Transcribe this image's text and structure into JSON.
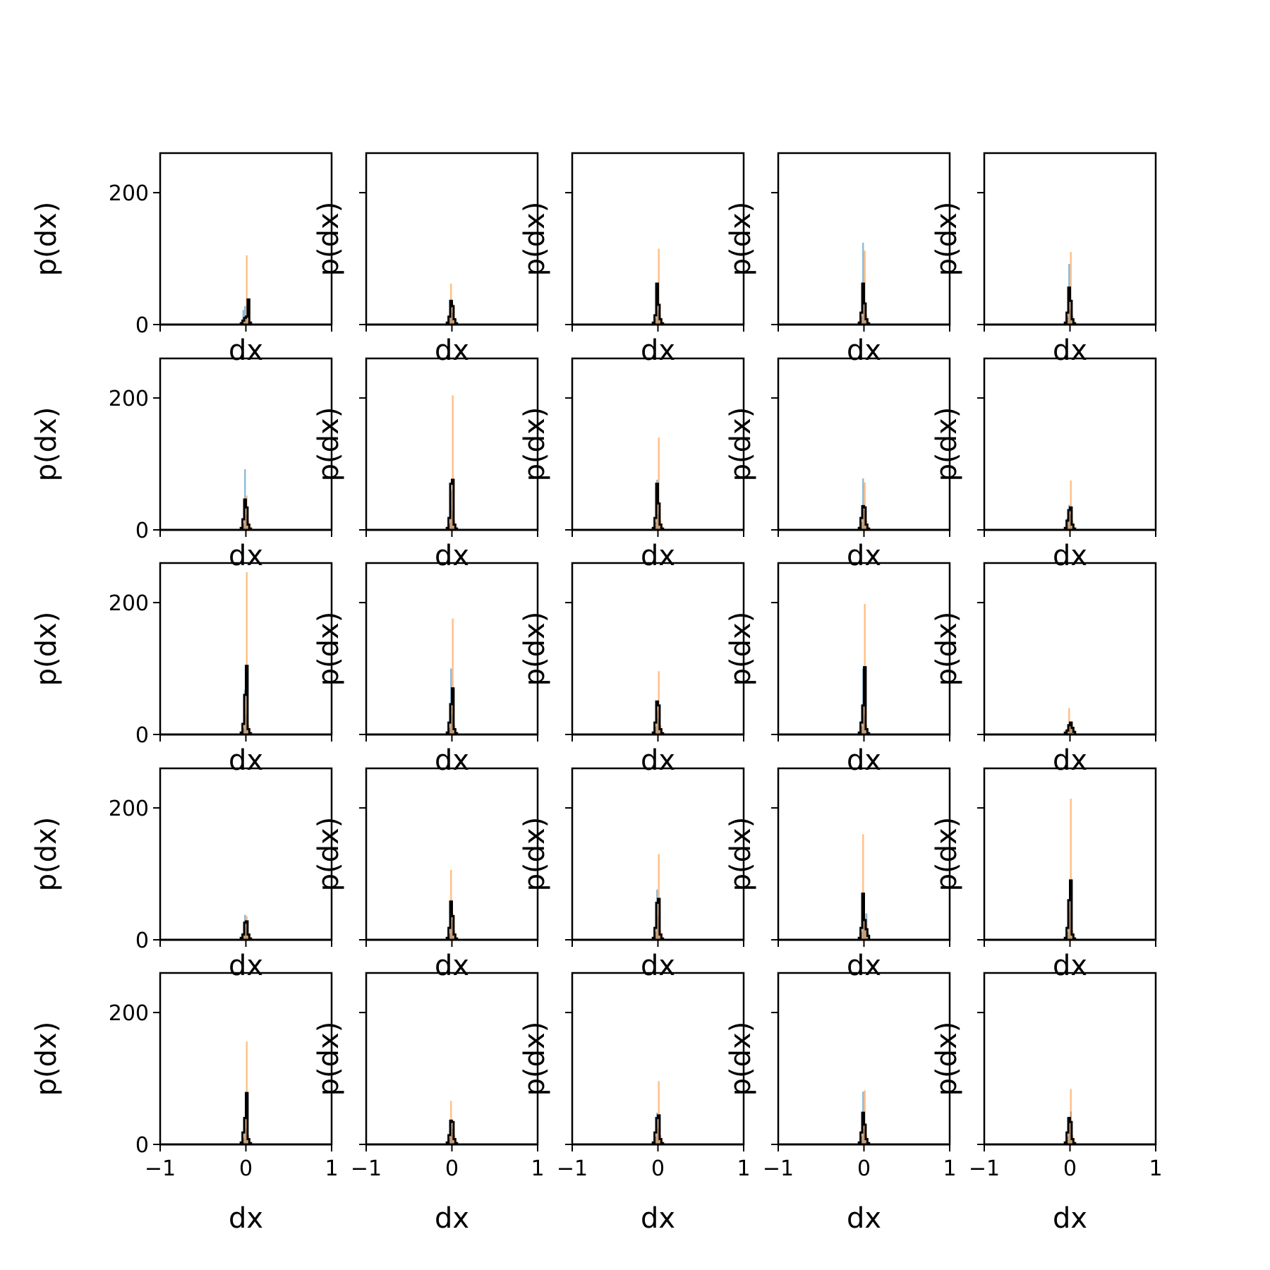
{
  "colors": {
    "series_blue": "#1f77b4",
    "series_orange": "#ff7f0e",
    "series_black": "#000000",
    "frame": "#000000",
    "background": "#ffffff"
  },
  "chart_data": {
    "type": "histogram-grid",
    "rows": 5,
    "cols": 5,
    "sharex": true,
    "sharey": true,
    "xlabel": "dx",
    "ylabel": "p(dx)",
    "xlim": [
      -1,
      1
    ],
    "ylim": [
      0,
      260
    ],
    "xticks": [
      -1,
      0,
      1
    ],
    "yticks": [
      0,
      200
    ],
    "xtick_labels": [
      "−1",
      "0",
      "1"
    ],
    "ytick_labels": [
      "0",
      "200"
    ],
    "grid": false,
    "legend": false,
    "series_styles": [
      {
        "color": "#1f77b4",
        "alpha": 0.5,
        "style": "filled"
      },
      {
        "color": "#ff7f0e",
        "alpha": 0.5,
        "style": "filled"
      },
      {
        "color": "#000000",
        "alpha": 1.0,
        "style": "step"
      }
    ],
    "bin_edges": [
      -0.06,
      -0.04,
      -0.02,
      0.0,
      0.02,
      0.04,
      0.06
    ],
    "panels": [
      {
        "row": 0,
        "col": 0,
        "series": [
          [
            5,
            22,
            28,
            12,
            4,
            1
          ],
          [
            2,
            5,
            10,
            105,
            18,
            2
          ],
          [
            2,
            6,
            10,
            12,
            38,
            3
          ]
        ]
      },
      {
        "row": 0,
        "col": 1,
        "series": [
          [
            4,
            12,
            28,
            18,
            4,
            1
          ],
          [
            2,
            10,
            62,
            32,
            8,
            1
          ],
          [
            3,
            12,
            36,
            28,
            8,
            2
          ]
        ]
      },
      {
        "row": 0,
        "col": 2,
        "series": [
          [
            3,
            10,
            62,
            22,
            6,
            1
          ],
          [
            2,
            6,
            20,
            115,
            12,
            2
          ],
          [
            3,
            14,
            62,
            30,
            8,
            2
          ]
        ]
      },
      {
        "row": 0,
        "col": 3,
        "series": [
          [
            3,
            12,
            124,
            30,
            6,
            1
          ],
          [
            2,
            6,
            20,
            112,
            14,
            2
          ],
          [
            3,
            18,
            62,
            32,
            8,
            2
          ]
        ]
      },
      {
        "row": 0,
        "col": 4,
        "series": [
          [
            3,
            12,
            92,
            24,
            6,
            1
          ],
          [
            2,
            6,
            22,
            110,
            14,
            2
          ],
          [
            3,
            18,
            56,
            36,
            8,
            2
          ]
        ]
      },
      {
        "row": 1,
        "col": 0,
        "series": [
          [
            3,
            10,
            92,
            22,
            6,
            1
          ],
          [
            2,
            6,
            30,
            52,
            14,
            2
          ],
          [
            3,
            16,
            46,
            34,
            8,
            2
          ]
        ]
      },
      {
        "row": 1,
        "col": 1,
        "series": [
          [
            3,
            10,
            60,
            30,
            6,
            1
          ],
          [
            2,
            6,
            40,
            204,
            14,
            2
          ],
          [
            3,
            18,
            70,
            76,
            8,
            2
          ]
        ]
      },
      {
        "row": 1,
        "col": 2,
        "series": [
          [
            3,
            12,
            76,
            24,
            6,
            1
          ],
          [
            2,
            6,
            40,
            140,
            14,
            2
          ],
          [
            3,
            18,
            70,
            40,
            8,
            2
          ]
        ]
      },
      {
        "row": 1,
        "col": 3,
        "series": [
          [
            3,
            12,
            78,
            30,
            6,
            1
          ],
          [
            2,
            6,
            30,
            72,
            14,
            2
          ],
          [
            3,
            18,
            36,
            34,
            8,
            2
          ]
        ]
      },
      {
        "row": 1,
        "col": 4,
        "series": [
          [
            3,
            18,
            38,
            24,
            6,
            1
          ],
          [
            2,
            6,
            30,
            75,
            14,
            2
          ],
          [
            3,
            14,
            30,
            34,
            8,
            2
          ]
        ]
      },
      {
        "row": 2,
        "col": 0,
        "series": [
          [
            3,
            10,
            68,
            30,
            6,
            1
          ],
          [
            2,
            6,
            40,
            246,
            14,
            2
          ],
          [
            3,
            16,
            60,
            104,
            8,
            2
          ]
        ]
      },
      {
        "row": 2,
        "col": 1,
        "series": [
          [
            3,
            10,
            100,
            30,
            6,
            1
          ],
          [
            2,
            6,
            40,
            176,
            14,
            2
          ],
          [
            3,
            18,
            46,
            70,
            8,
            2
          ]
        ]
      },
      {
        "row": 2,
        "col": 2,
        "series": [
          [
            3,
            12,
            36,
            24,
            6,
            1
          ],
          [
            2,
            6,
            40,
            96,
            14,
            2
          ],
          [
            3,
            18,
            50,
            44,
            8,
            2
          ]
        ]
      },
      {
        "row": 2,
        "col": 3,
        "series": [
          [
            3,
            12,
            100,
            30,
            6,
            1
          ],
          [
            2,
            6,
            40,
            198,
            14,
            2
          ],
          [
            3,
            18,
            44,
            102,
            8,
            2
          ]
        ]
      },
      {
        "row": 2,
        "col": 4,
        "series": [
          [
            3,
            8,
            16,
            18,
            10,
            4
          ],
          [
            2,
            8,
            40,
            20,
            8,
            2
          ],
          [
            3,
            6,
            14,
            18,
            10,
            4
          ]
        ]
      },
      {
        "row": 3,
        "col": 0,
        "series": [
          [
            3,
            10,
            38,
            24,
            8,
            2
          ],
          [
            2,
            6,
            28,
            36,
            10,
            2
          ],
          [
            3,
            8,
            26,
            28,
            8,
            2
          ]
        ]
      },
      {
        "row": 3,
        "col": 1,
        "series": [
          [
            3,
            10,
            42,
            30,
            6,
            1
          ],
          [
            2,
            6,
            106,
            40,
            14,
            2
          ],
          [
            3,
            18,
            58,
            36,
            8,
            2
          ]
        ]
      },
      {
        "row": 3,
        "col": 2,
        "series": [
          [
            3,
            12,
            76,
            36,
            6,
            1
          ],
          [
            2,
            6,
            40,
            130,
            14,
            2
          ],
          [
            3,
            18,
            56,
            62,
            8,
            2
          ]
        ]
      },
      {
        "row": 3,
        "col": 3,
        "series": [
          [
            3,
            12,
            60,
            30,
            40,
            10
          ],
          [
            2,
            6,
            160,
            40,
            24,
            4
          ],
          [
            3,
            18,
            70,
            30,
            16,
            6
          ]
        ]
      },
      {
        "row": 3,
        "col": 4,
        "series": [
          [
            3,
            12,
            60,
            88,
            6,
            1
          ],
          [
            2,
            6,
            40,
            214,
            14,
            2
          ],
          [
            3,
            18,
            60,
            90,
            8,
            2
          ]
        ]
      },
      {
        "row": 4,
        "col": 0,
        "series": [
          [
            3,
            10,
            42,
            24,
            6,
            1
          ],
          [
            2,
            6,
            40,
            156,
            14,
            2
          ],
          [
            3,
            18,
            40,
            78,
            8,
            2
          ]
        ]
      },
      {
        "row": 4,
        "col": 1,
        "series": [
          [
            3,
            10,
            32,
            24,
            6,
            1
          ],
          [
            2,
            6,
            66,
            30,
            14,
            2
          ],
          [
            3,
            14,
            36,
            34,
            8,
            2
          ]
        ]
      },
      {
        "row": 4,
        "col": 2,
        "series": [
          [
            3,
            12,
            48,
            24,
            6,
            1
          ],
          [
            2,
            6,
            30,
            96,
            14,
            2
          ],
          [
            3,
            18,
            40,
            44,
            8,
            2
          ]
        ]
      },
      {
        "row": 4,
        "col": 3,
        "series": [
          [
            3,
            12,
            80,
            24,
            6,
            1
          ],
          [
            2,
            6,
            40,
            82,
            14,
            2
          ],
          [
            3,
            18,
            48,
            30,
            8,
            2
          ]
        ]
      },
      {
        "row": 4,
        "col": 4,
        "series": [
          [
            3,
            12,
            42,
            50,
            6,
            1
          ],
          [
            2,
            6,
            40,
            84,
            14,
            2
          ],
          [
            3,
            18,
            40,
            34,
            8,
            2
          ]
        ]
      }
    ]
  }
}
